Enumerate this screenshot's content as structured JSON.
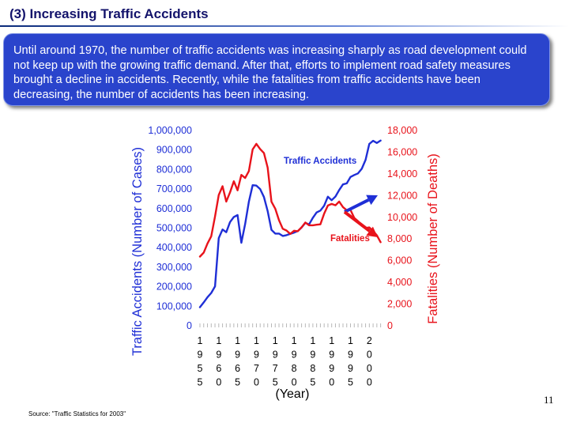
{
  "slide": {
    "title": "(3) Increasing Traffic Accidents",
    "body": "Until around 1970, the number of traffic accidents was increasing sharply as road development could not keep up with the growing traffic demand.  After that, efforts to implement road safety measures brought a decline in accidents.  Recently, while the fatalities from traffic accidents have been decreasing, the number of accidents has been increasing.",
    "source": "Source: \"Traffic Statistics for 2003\"",
    "page_number": "11"
  },
  "chart_data": {
    "type": "line",
    "xlabel": "(Year)",
    "ylabel_left": "Traffic Accidents (Number of Cases)",
    "ylabel_right": "Fatalities (Number of Deaths)",
    "x_tick_labels": [
      "1955",
      "1960",
      "1965",
      "1970",
      "1975",
      "1980",
      "1985",
      "1990",
      "1995",
      "2000"
    ],
    "ylim_left": [
      0,
      1000000
    ],
    "ylim_right": [
      0,
      18000
    ],
    "left_ticks": [
      "0",
      "100,000",
      "200,000",
      "300,000",
      "400,000",
      "500,000",
      "600,000",
      "700,000",
      "800,000",
      "900,000",
      "1,000,000"
    ],
    "right_ticks": [
      "0",
      "2,000",
      "4,000",
      "6,000",
      "8,000",
      "10,000",
      "12,000",
      "14,000",
      "16,000",
      "18,000"
    ],
    "x": [
      1955,
      1956,
      1957,
      1958,
      1959,
      1960,
      1961,
      1962,
      1963,
      1964,
      1965,
      1966,
      1967,
      1968,
      1969,
      1970,
      1971,
      1972,
      1973,
      1974,
      1975,
      1976,
      1977,
      1978,
      1979,
      1980,
      1981,
      1982,
      1983,
      1984,
      1985,
      1986,
      1987,
      1988,
      1989,
      1990,
      1991,
      1992,
      1993,
      1994,
      1995,
      1996,
      1997,
      1998,
      1999,
      2000,
      2001,
      2002,
      2003
    ],
    "series": [
      {
        "name": "Traffic Accidents",
        "axis": "left",
        "color": "#1f2fd6",
        "values": [
          95000,
          120000,
          146000,
          168000,
          202000,
          449000,
          493000,
          479000,
          531000,
          557000,
          567000,
          425000,
          521000,
          635000,
          720000,
          718000,
          700000,
          659000,
          587000,
          491000,
          472000,
          472000,
          460000,
          464000,
          471000,
          477000,
          485000,
          503000,
          527000,
          519000,
          553000,
          580000,
          590000,
          615000,
          661000,
          643000,
          662000,
          695000,
          724000,
          729000,
          762000,
          772000,
          780000,
          804000,
          850000,
          931000,
          947000,
          936000,
          948000
        ]
      },
      {
        "name": "Fatalities",
        "axis": "right",
        "color": "#e8131b",
        "values": [
          6379,
          6751,
          7575,
          8248,
          10079,
          12055,
          12865,
          11445,
          12301,
          13318,
          12484,
          13904,
          13618,
          14256,
          16257,
          16765,
          16278,
          15918,
          14574,
          11432,
          10792,
          9734,
          8945,
          8783,
          8466,
          8760,
          8719,
          9073,
          9520,
          9262,
          9261,
          9317,
          9347,
          10344,
          11086,
          11227,
          11105,
          11451,
          10942,
          10649,
          10679,
          9942,
          9640,
          9211,
          9006,
          9066,
          8747,
          8326,
          7702
        ]
      }
    ],
    "annotations": [
      {
        "text": "Traffic Accidents",
        "color": "#1f2fd6"
      },
      {
        "text": "Fatalities",
        "color": "#e8131b"
      }
    ],
    "arrows": [
      {
        "direction": "up",
        "color": "#1f2fd6"
      },
      {
        "direction": "down",
        "color": "#e8131b"
      }
    ]
  }
}
